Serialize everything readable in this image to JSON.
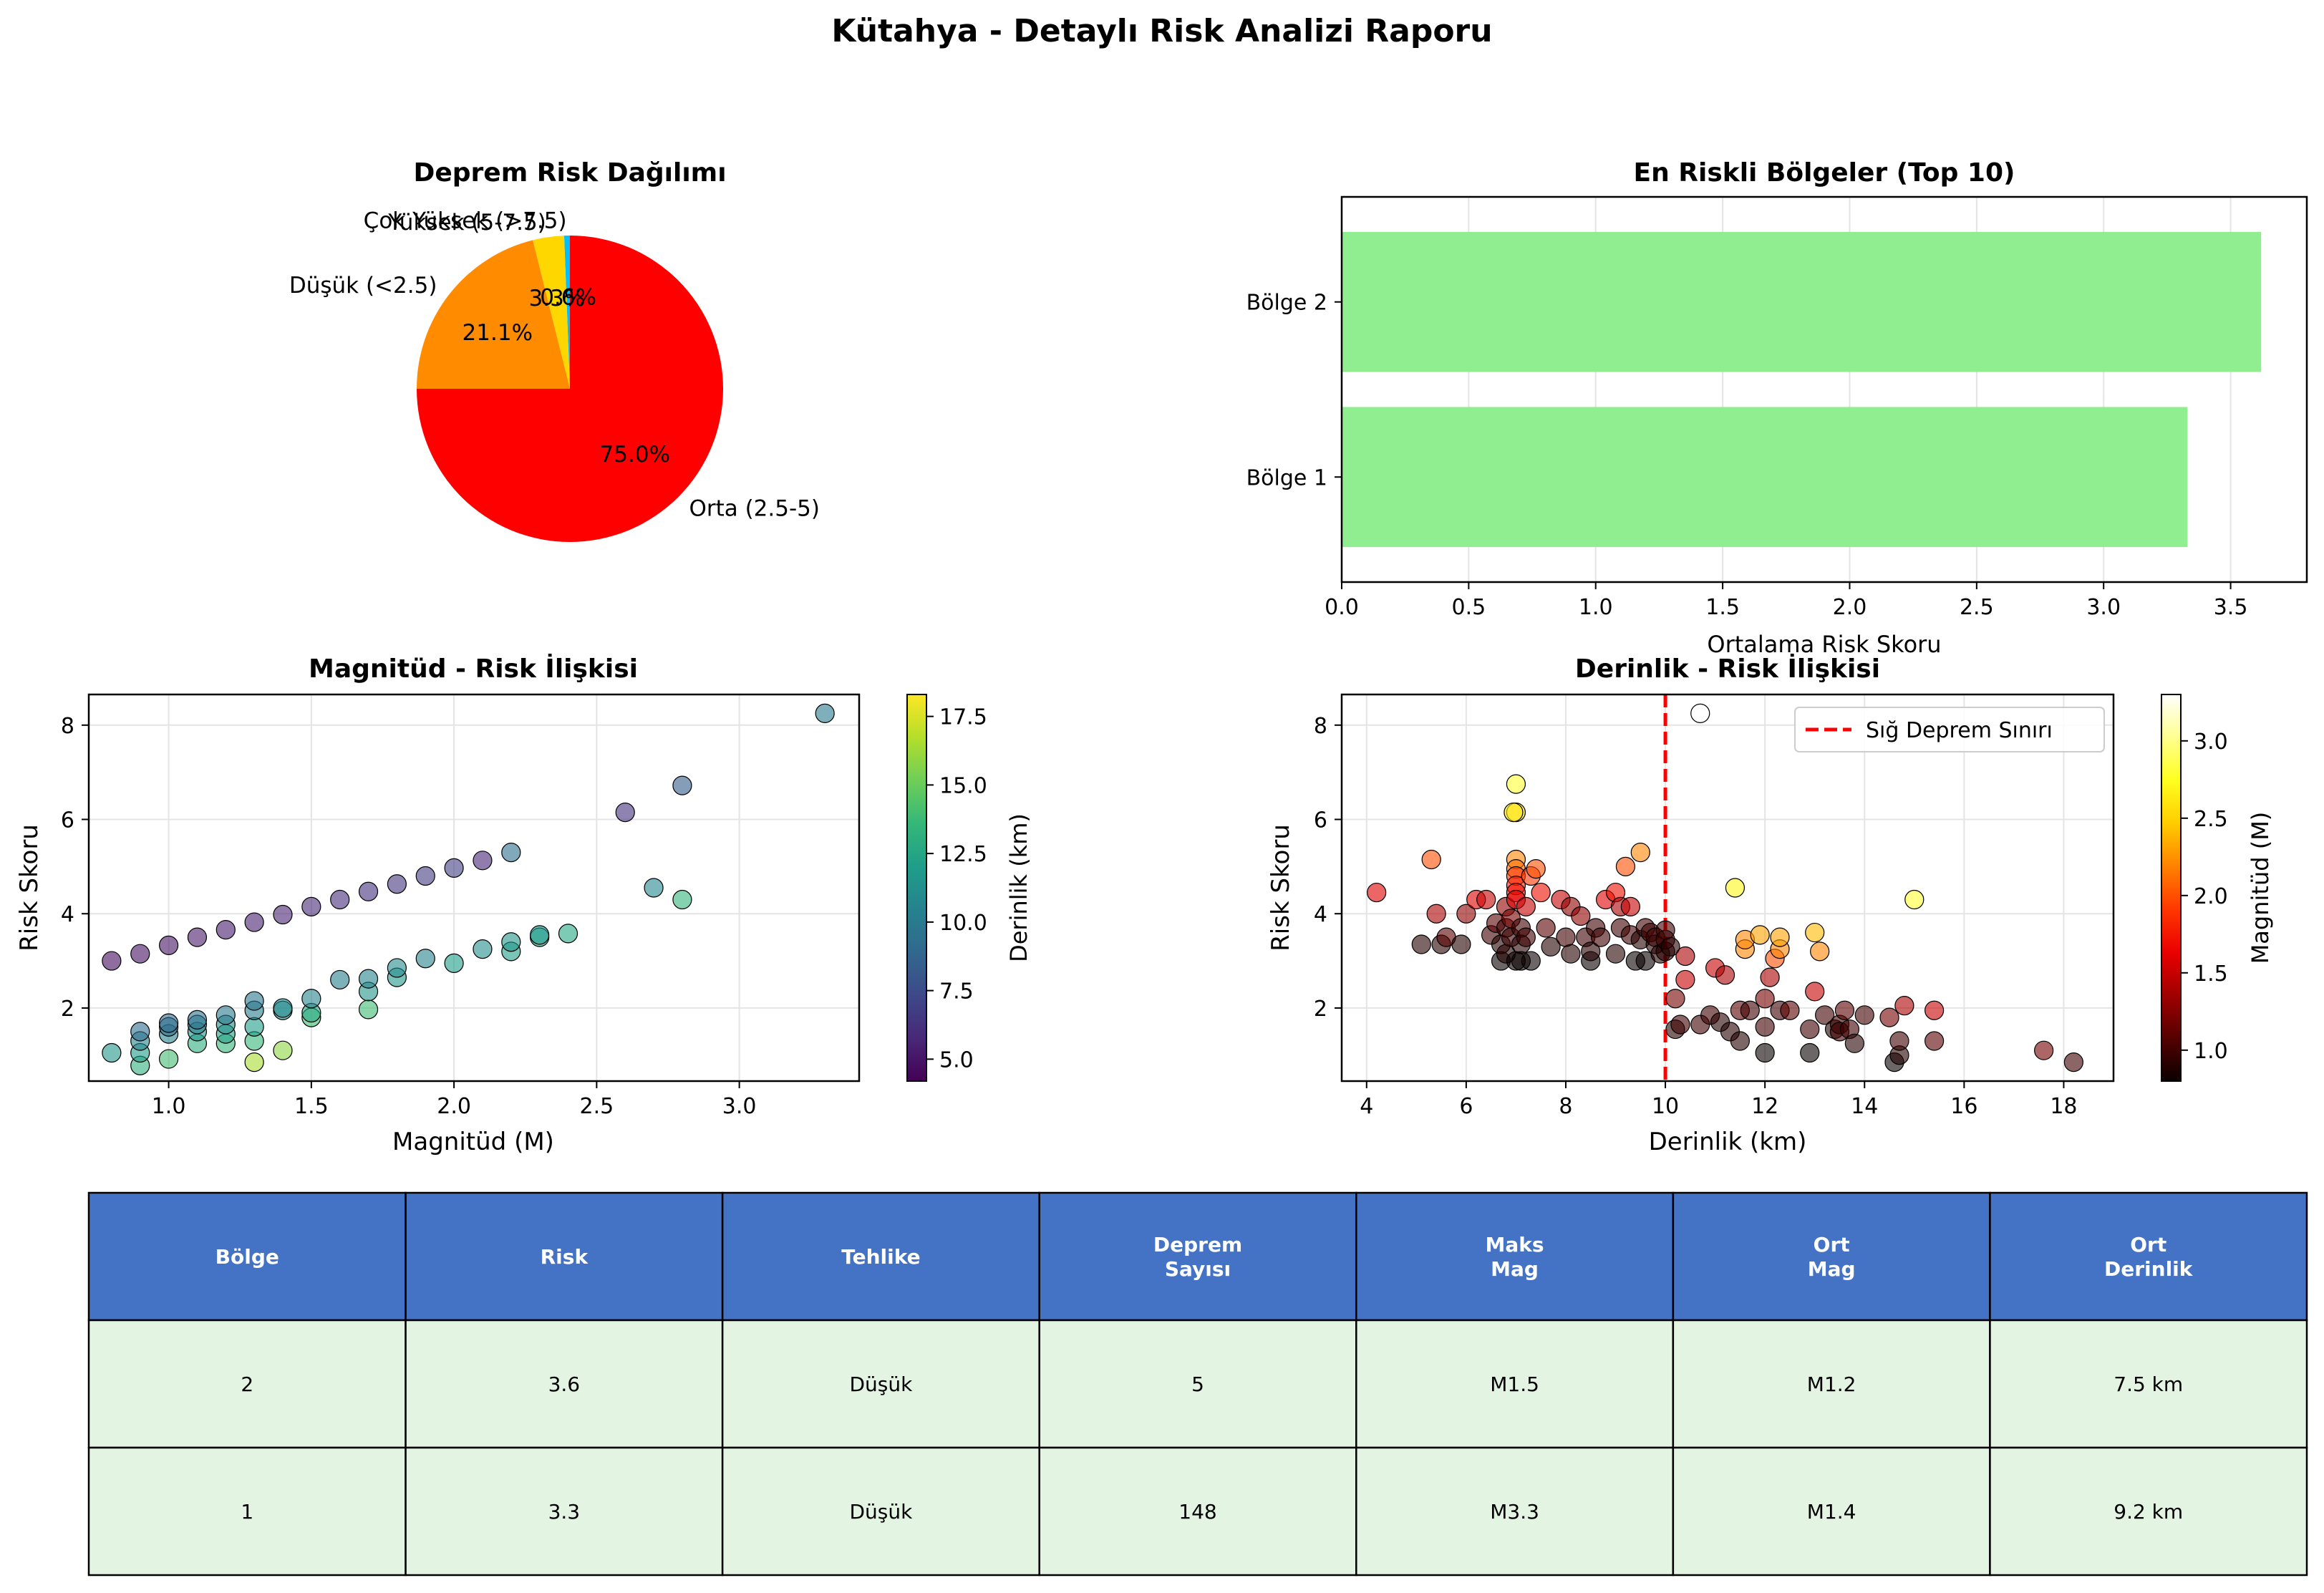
{
  "suptitle": "Kütahya - Detaylı Risk Analizi Raporu",
  "colors": {
    "pie": [
      "#00bfff",
      "#ffd700",
      "#ff8c00",
      "#ff0000"
    ],
    "bar": "#90ee90",
    "shallow_line": "#ff0000",
    "table_header": "#4472c4",
    "table_row": "#e4f4e2",
    "table_header_text": "#ffffff",
    "viridis": [
      "#440154",
      "#482878",
      "#3e4989",
      "#31688e",
      "#26828e",
      "#1f9e89",
      "#35b779",
      "#6ece58",
      "#b5de2b",
      "#fde725"
    ],
    "hot": [
      "#0b0000",
      "#550000",
      "#a00000",
      "#ea0000",
      "#ff3700",
      "#ff8200",
      "#ffcc00",
      "#ffff20",
      "#ffff8f",
      "#ffffff"
    ]
  },
  "chart_data": [
    {
      "type": "pie",
      "title": "Deprem Risk Dağılımı",
      "labels": [
        "Çok Yüksek (>7.5)",
        "Yüksek (5-7.5)",
        "Düşük (<2.5)",
        "Orta (2.5-5)"
      ],
      "pct_labels": [
        "0.6%",
        "3.3%",
        "21.1%",
        "75.0%"
      ],
      "values": [
        0.6,
        3.3,
        21.1,
        75.0
      ]
    },
    {
      "type": "bar",
      "orientation": "horizontal",
      "title": "En Riskli Bölgeler (Top 10)",
      "categories": [
        "Bölge 1",
        "Bölge 2"
      ],
      "values": [
        3.33,
        3.62
      ],
      "xlabel": "Ortalama Risk Skoru",
      "xlim": [
        0,
        3.8
      ],
      "xticks": [
        "0.0",
        "0.5",
        "1.0",
        "1.5",
        "2.0",
        "2.5",
        "3.0",
        "3.5"
      ]
    },
    {
      "type": "scatter",
      "title": "Magnitüd - Risk İlişkisi",
      "xlabel": "Magnitüd (M)",
      "ylabel": "Risk Skoru",
      "xlim": [
        0.72,
        3.42
      ],
      "ylim": [
        0.45,
        8.65
      ],
      "xticks": [
        "1.0",
        "1.5",
        "2.0",
        "2.5",
        "3.0"
      ],
      "yticks": [
        "2",
        "4",
        "6",
        "8"
      ],
      "colorbar_label": "Derinlik (km)",
      "colorbar_range": [
        4.2,
        18.3
      ],
      "colorbar_ticks": [
        "5.0",
        "7.5",
        "10.0",
        "12.5",
        "15.0",
        "17.5"
      ],
      "points": [
        [
          0.8,
          3.0,
          4.6
        ],
        [
          0.9,
          3.15,
          4.8
        ],
        [
          1.0,
          3.33,
          5.0
        ],
        [
          1.1,
          3.5,
          5.2
        ],
        [
          1.2,
          3.66,
          5.3
        ],
        [
          1.3,
          3.82,
          5.4
        ],
        [
          1.4,
          3.98,
          5.6
        ],
        [
          1.5,
          4.15,
          5.8
        ],
        [
          1.6,
          4.3,
          6.0
        ],
        [
          1.7,
          4.47,
          6.2
        ],
        [
          1.8,
          4.63,
          6.4
        ],
        [
          1.9,
          4.8,
          6.7
        ],
        [
          2.0,
          4.97,
          6.9
        ],
        [
          2.1,
          5.13,
          5.7
        ],
        [
          2.6,
          6.15,
          6.2
        ],
        [
          2.8,
          6.72,
          8.3
        ],
        [
          0.8,
          1.05,
          11.6
        ],
        [
          0.9,
          0.78,
          13.2
        ],
        [
          0.9,
          1.05,
          12.0
        ],
        [
          0.9,
          1.3,
          10.5
        ],
        [
          0.9,
          1.5,
          9.3
        ],
        [
          1.0,
          0.92,
          14.0
        ],
        [
          1.0,
          1.45,
          10.6
        ],
        [
          1.0,
          1.6,
          9.6
        ],
        [
          1.0,
          1.68,
          9.1
        ],
        [
          1.1,
          1.25,
          13.0
        ],
        [
          1.1,
          1.5,
          11.5
        ],
        [
          1.1,
          1.65,
          10.3
        ],
        [
          1.1,
          1.75,
          9.5
        ],
        [
          1.2,
          1.25,
          13.5
        ],
        [
          1.2,
          1.45,
          12.3
        ],
        [
          1.2,
          1.65,
          11.0
        ],
        [
          1.2,
          1.85,
          10.0
        ],
        [
          1.3,
          0.85,
          16.5
        ],
        [
          1.3,
          1.3,
          13.6
        ],
        [
          1.3,
          1.6,
          11.9
        ],
        [
          1.3,
          1.95,
          10.2
        ],
        [
          1.3,
          2.15,
          9.8
        ],
        [
          1.4,
          1.1,
          15.9
        ],
        [
          1.4,
          1.95,
          11.4
        ],
        [
          1.4,
          2.0,
          10.8
        ],
        [
          1.5,
          1.8,
          13.8
        ],
        [
          1.5,
          1.9,
          12.6
        ],
        [
          1.5,
          2.2,
          10.5
        ],
        [
          1.6,
          2.6,
          10.2
        ],
        [
          1.7,
          1.97,
          13.9
        ],
        [
          1.7,
          2.35,
          11.6
        ],
        [
          1.7,
          2.62,
          10.7
        ],
        [
          1.8,
          2.65,
          11.8
        ],
        [
          1.8,
          2.85,
          10.9
        ],
        [
          1.9,
          3.05,
          10.5
        ],
        [
          2.0,
          2.95,
          12.0
        ],
        [
          2.1,
          3.25,
          11.1
        ],
        [
          2.2,
          3.2,
          12.1
        ],
        [
          2.2,
          3.4,
          11.6
        ],
        [
          2.2,
          5.3,
          9.4
        ],
        [
          2.3,
          3.5,
          12.3
        ],
        [
          2.3,
          3.55,
          11.8
        ],
        [
          2.4,
          3.58,
          12.6
        ],
        [
          2.7,
          4.55,
          10.8
        ],
        [
          2.8,
          4.3,
          13.4
        ],
        [
          3.3,
          8.25,
          9.9
        ]
      ]
    },
    {
      "type": "scatter",
      "title": "Derinlik - Risk İlişkisi",
      "xlabel": "Derinlik (km)",
      "ylabel": "Risk Skoru",
      "xlim": [
        3.5,
        19.0
      ],
      "ylim": [
        0.45,
        8.65
      ],
      "xticks": [
        "4",
        "6",
        "8",
        "10",
        "12",
        "14",
        "16",
        "18"
      ],
      "yticks": [
        "2",
        "4",
        "6",
        "8"
      ],
      "legend": "Sığ Deprem Sınırı",
      "reference_line_x": 10,
      "colorbar_label": "Magnitüd (M)",
      "colorbar_range": [
        0.8,
        3.3
      ],
      "colorbar_ticks": [
        "1.0",
        "1.5",
        "2.0",
        "2.5",
        "3.0"
      ],
      "points": [
        [
          4.2,
          4.45,
          1.6
        ],
        [
          5.1,
          3.35,
          0.9
        ],
        [
          5.3,
          5.15,
          2.0
        ],
        [
          5.4,
          4.0,
          1.4
        ],
        [
          5.5,
          3.35,
          0.9
        ],
        [
          5.6,
          3.5,
          1.1
        ],
        [
          5.9,
          3.35,
          0.9
        ],
        [
          6.0,
          4.0,
          1.3
        ],
        [
          6.2,
          4.3,
          1.6
        ],
        [
          6.4,
          4.3,
          1.5
        ],
        [
          6.5,
          3.55,
          1.0
        ],
        [
          6.6,
          3.8,
          1.1
        ],
        [
          6.7,
          3.0,
          0.8
        ],
        [
          6.7,
          3.35,
          0.9
        ],
        [
          6.8,
          3.15,
          0.9
        ],
        [
          6.8,
          3.7,
          1.0
        ],
        [
          6.8,
          4.15,
          1.3
        ],
        [
          6.9,
          3.5,
          1.0
        ],
        [
          6.9,
          3.9,
          1.2
        ],
        [
          7.0,
          6.75,
          2.8
        ],
        [
          7.0,
          6.15,
          2.6
        ],
        [
          6.95,
          6.15,
          2.6
        ],
        [
          7.0,
          5.15,
          2.2
        ],
        [
          7.0,
          4.95,
          2.1
        ],
        [
          7.0,
          4.8,
          1.9
        ],
        [
          7.0,
          4.6,
          1.8
        ],
        [
          7.0,
          4.45,
          1.7
        ],
        [
          7.0,
          4.3,
          1.6
        ],
        [
          7.0,
          3.0,
          0.8
        ],
        [
          7.1,
          3.7,
          1.0
        ],
        [
          7.1,
          3.35,
          0.9
        ],
        [
          7.1,
          3.0,
          0.8
        ],
        [
          7.2,
          4.15,
          1.5
        ],
        [
          7.2,
          3.5,
          1.0
        ],
        [
          7.3,
          4.8,
          1.9
        ],
        [
          7.3,
          3.0,
          0.8
        ],
        [
          7.4,
          4.95,
          2.0
        ],
        [
          7.5,
          4.45,
          1.7
        ],
        [
          7.6,
          3.7,
          1.1
        ],
        [
          7.7,
          3.3,
          0.9
        ],
        [
          7.9,
          4.3,
          1.5
        ],
        [
          8.0,
          3.5,
          1.0
        ],
        [
          8.1,
          3.15,
          0.9
        ],
        [
          8.1,
          4.15,
          1.3
        ],
        [
          8.3,
          3.95,
          1.3
        ],
        [
          8.4,
          3.5,
          1.0
        ],
        [
          8.5,
          3.0,
          0.8
        ],
        [
          8.5,
          3.2,
          0.9
        ],
        [
          8.6,
          3.7,
          1.0
        ],
        [
          8.7,
          3.5,
          1.0
        ],
        [
          8.8,
          4.3,
          1.6
        ],
        [
          9.0,
          3.15,
          0.9
        ],
        [
          9.0,
          4.45,
          1.7
        ],
        [
          9.1,
          4.15,
          1.4
        ],
        [
          9.1,
          3.7,
          1.0
        ],
        [
          9.2,
          5.0,
          2.0
        ],
        [
          9.3,
          4.15,
          1.5
        ],
        [
          9.3,
          3.55,
          1.0
        ],
        [
          9.4,
          3.0,
          0.8
        ],
        [
          9.5,
          5.3,
          2.2
        ],
        [
          9.5,
          3.45,
          0.9
        ],
        [
          9.6,
          3.0,
          0.8
        ],
        [
          9.6,
          3.7,
          1.0
        ],
        [
          9.7,
          3.6,
          1.0
        ],
        [
          9.8,
          3.35,
          0.9
        ],
        [
          9.8,
          3.5,
          1.0
        ],
        [
          9.9,
          3.15,
          0.9
        ],
        [
          10.0,
          3.2,
          0.9
        ],
        [
          10.0,
          3.65,
          1.0
        ],
        [
          10.0,
          3.45,
          1.0
        ],
        [
          10.1,
          3.3,
          0.9
        ],
        [
          10.4,
          3.1,
          1.4
        ],
        [
          10.2,
          2.2,
          1.2
        ],
        [
          10.2,
          1.55,
          0.9
        ],
        [
          10.3,
          1.65,
          1.0
        ],
        [
          10.4,
          2.6,
          1.5
        ],
        [
          10.7,
          8.25,
          3.3
        ],
        [
          10.7,
          1.65,
          1.0
        ],
        [
          10.9,
          1.85,
          1.0
        ],
        [
          11.0,
          2.85,
          1.5
        ],
        [
          11.1,
          1.7,
          0.9
        ],
        [
          11.2,
          2.7,
          1.4
        ],
        [
          11.3,
          1.5,
          0.9
        ],
        [
          11.4,
          4.55,
          2.7
        ],
        [
          11.5,
          1.3,
          0.9
        ],
        [
          11.5,
          1.95,
          1.1
        ],
        [
          11.6,
          3.25,
          2.2
        ],
        [
          11.6,
          3.45,
          2.2
        ],
        [
          11.7,
          1.95,
          1.0
        ],
        [
          11.9,
          3.55,
          2.3
        ],
        [
          12.0,
          1.05,
          0.8
        ],
        [
          12.0,
          1.6,
          1.0
        ],
        [
          12.0,
          2.2,
          1.2
        ],
        [
          12.1,
          2.65,
          1.4
        ],
        [
          12.2,
          3.05,
          2.0
        ],
        [
          12.3,
          3.25,
          2.2
        ],
        [
          12.3,
          3.5,
          2.3
        ],
        [
          12.3,
          1.95,
          1.0
        ],
        [
          12.5,
          1.95,
          1.1
        ],
        [
          12.9,
          1.05,
          0.8
        ],
        [
          12.9,
          1.55,
          1.0
        ],
        [
          13.0,
          2.35,
          1.5
        ],
        [
          13.0,
          3.6,
          2.4
        ],
        [
          13.1,
          3.2,
          2.2
        ],
        [
          13.2,
          1.85,
          1.0
        ],
        [
          13.4,
          1.55,
          0.9
        ],
        [
          13.5,
          1.65,
          1.0
        ],
        [
          13.5,
          1.5,
          1.0
        ],
        [
          13.6,
          1.95,
          1.1
        ],
        [
          13.7,
          1.55,
          1.0
        ],
        [
          13.8,
          1.25,
          0.9
        ],
        [
          14.0,
          1.85,
          1.0
        ],
        [
          14.5,
          1.8,
          1.2
        ],
        [
          14.6,
          0.85,
          0.8
        ],
        [
          14.7,
          1.0,
          0.9
        ],
        [
          14.7,
          1.3,
          1.0
        ],
        [
          14.8,
          2.05,
          1.4
        ],
        [
          15.0,
          4.3,
          2.8
        ],
        [
          15.4,
          1.3,
          1.1
        ],
        [
          15.4,
          1.95,
          1.5
        ],
        [
          17.6,
          1.1,
          1.2
        ],
        [
          18.2,
          0.85,
          1.0
        ]
      ]
    },
    {
      "type": "table",
      "headers": [
        "Bölge",
        "Risk",
        "Tehlike",
        "Deprem\nSayısı",
        "Maks\nMag",
        "Ort\nMag",
        "Ort\nDerinlik"
      ],
      "rows": [
        [
          "2",
          "3.6",
          "Düşük",
          "5",
          "M1.5",
          "M1.2",
          "7.5 km"
        ],
        [
          "1",
          "3.3",
          "Düşük",
          "148",
          "M3.3",
          "M1.4",
          "9.2 km"
        ]
      ]
    }
  ]
}
